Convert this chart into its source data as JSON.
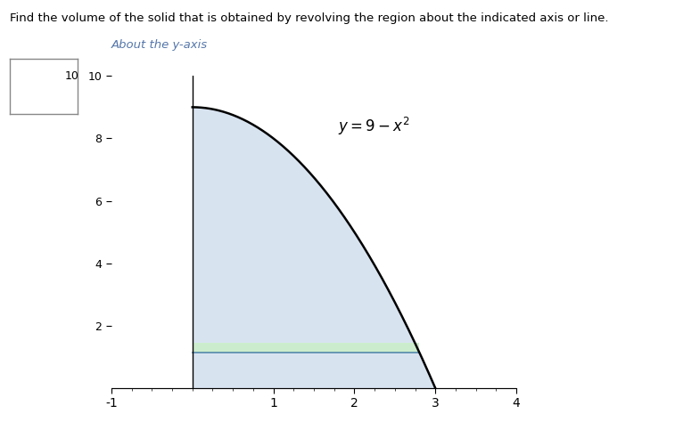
{
  "title_text": "Find the volume of the solid that is obtained by revolving the region about the indicated axis or line.",
  "subtitle": "About the y-axis",
  "xlim": [
    -1,
    4
  ],
  "ylim": [
    0,
    10
  ],
  "curve_color": "#000000",
  "fill_color": "#b8cce4",
  "fill_alpha": 0.55,
  "green_band_color": "#cceecc",
  "green_band_alpha": 0.95,
  "green_band_ymin": 1.15,
  "green_band_ymax": 1.45,
  "blue_line_y": 1.15,
  "blue_line_color": "#5588aa",
  "subtitle_color": "#5577aa",
  "background_color": "#ffffff",
  "box_color": "#888888",
  "figsize": [
    7.57,
    4.74
  ],
  "dpi": 100
}
